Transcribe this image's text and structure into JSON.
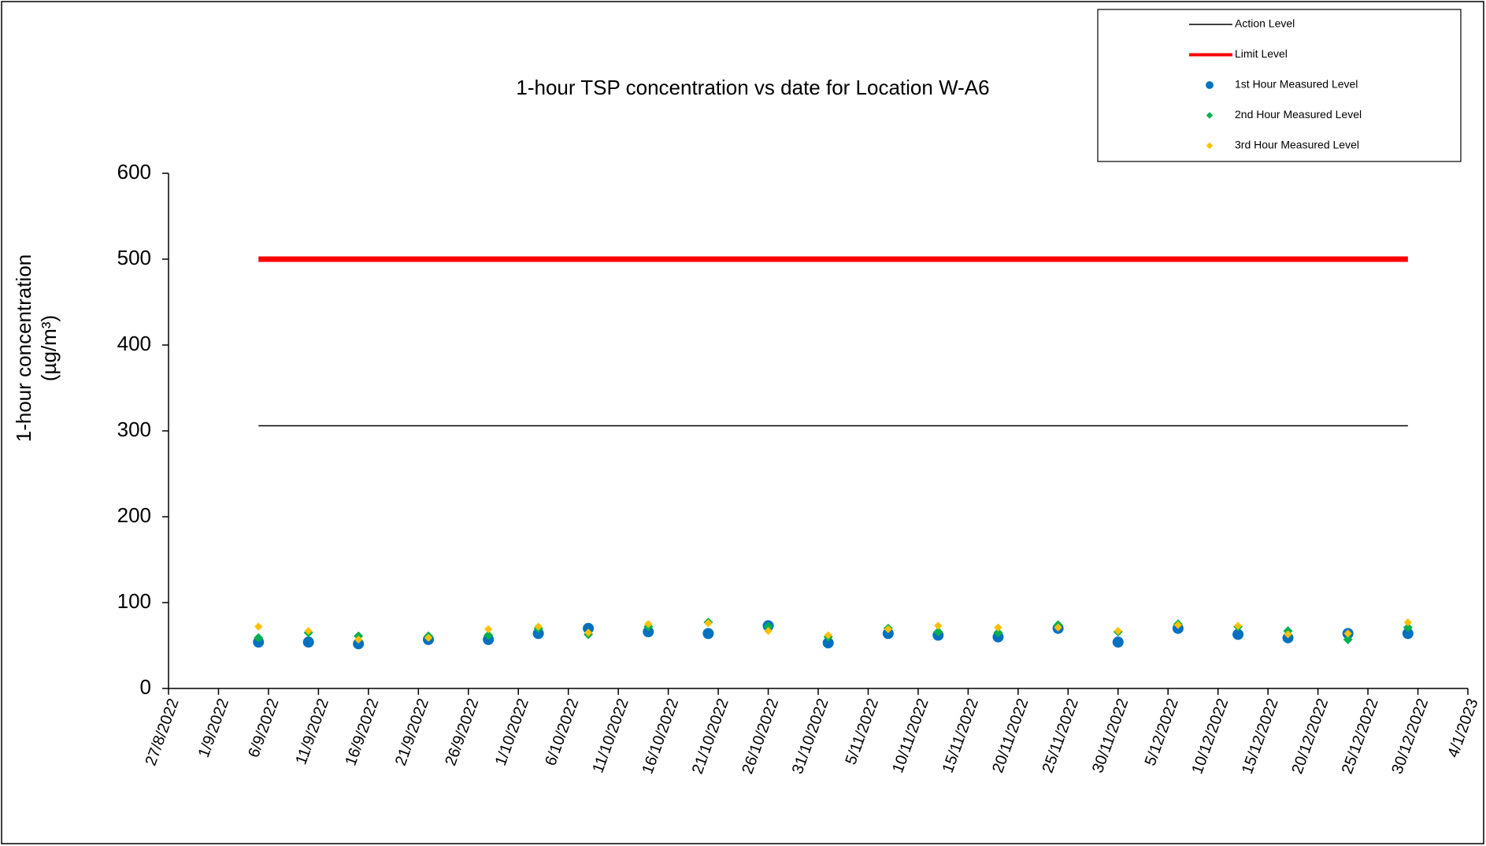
{
  "chart_data": {
    "type": "scatter",
    "title": "1-hour TSP concentration vs date for Location  W-A6",
    "y_label": [
      "1-hour concentration",
      "(µg/m³)"
    ],
    "x": [
      "5/9/2022",
      "10/9/2022",
      "15/9/2022",
      "22/9/2022",
      "28/9/2022",
      "3/10/2022",
      "8/10/2022",
      "14/10/2022",
      "20/10/2022",
      "26/10/2022",
      "1/11/2022",
      "7/11/2022",
      "12/11/2022",
      "18/11/2022",
      "24/11/2022",
      "30/11/2022",
      "6/12/2022",
      "12/12/2022",
      "17/12/2022",
      "23/12/2022",
      "29/12/2022"
    ],
    "series": [
      {
        "name": "Action Level",
        "mark": "line",
        "color": "#000000",
        "x": [
          "5/9/2022",
          "29/12/2022"
        ],
        "values": [
          306,
          306
        ]
      },
      {
        "name": "Limit Level",
        "mark": "line",
        "color": "#ff0000",
        "x": [
          "5/9/2022",
          "29/12/2022"
        ],
        "values": [
          500,
          500
        ]
      },
      {
        "name": "1st Hour Measured Level",
        "mark": "circle",
        "color": "#0070c0",
        "values": [
          54,
          54,
          52,
          57,
          57,
          64,
          70,
          66,
          64,
          73,
          53,
          64,
          62,
          60,
          70,
          54,
          70,
          63,
          59,
          64,
          64
        ]
      },
      {
        "name": "2nd Hour Measured Level",
        "mark": "diamond",
        "color": "#00b050",
        "values": [
          59,
          65,
          61,
          61,
          62,
          70,
          63,
          72,
          77,
          72,
          60,
          70,
          66,
          65,
          74,
          66,
          75,
          72,
          67,
          57,
          71
        ]
      },
      {
        "name": "3rd Hour Measured Level",
        "mark": "diamond",
        "color": "#ffc000",
        "values": [
          72,
          67,
          57,
          59,
          69,
          72,
          65,
          75,
          76,
          67,
          62,
          69,
          73,
          71,
          71,
          67,
          74,
          73,
          63,
          64,
          77
        ]
      }
    ],
    "xlim": [
      "27/8/2022",
      "4/1/2023"
    ],
    "xticks": [
      "27/8/2022",
      "1/9/2022",
      "6/9/2022",
      "11/9/2022",
      "16/9/2022",
      "21/9/2022",
      "26/9/2022",
      "1/10/2022",
      "6/10/2022",
      "11/10/2022",
      "16/10/2022",
      "21/10/2022",
      "26/10/2022",
      "31/10/2022",
      "5/11/2022",
      "10/11/2022",
      "15/11/2022",
      "20/11/2022",
      "25/11/2022",
      "30/11/2022",
      "5/12/2022",
      "10/12/2022",
      "15/12/2022",
      "20/12/2022",
      "25/12/2022",
      "30/12/2022",
      "4/1/2023"
    ],
    "ylim": [
      0,
      600
    ],
    "yticks": [
      0,
      100,
      200,
      300,
      400,
      500,
      600
    ],
    "grid": false,
    "legend": "top-right"
  }
}
